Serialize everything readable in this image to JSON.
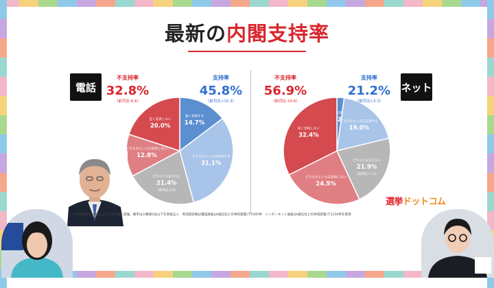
{
  "title": {
    "prefix": "最新の",
    "highlight": "内閣支持率"
  },
  "colors": {
    "support": "#5b8fd0",
    "not_support": "#d54a4e",
    "neutral": "#b7b7b7",
    "accent": "#d8262d"
  },
  "panels": [
    {
      "method": "電話",
      "not_support": {
        "label": "不支持率",
        "value": "32.8%",
        "change": "（前月比-6.6）"
      },
      "support": {
        "label": "支持率",
        "value": "45.8%",
        "change": "（前月比+10.3）"
      }
    },
    {
      "method": "ネット",
      "not_support": {
        "label": "不支持率",
        "value": "56.9%",
        "change": "（前月比-10.6）"
      },
      "support": {
        "label": "支持率",
        "value": "21.2%",
        "change": "（前月比+3.3）"
      }
    }
  ],
  "chart_data": [
    {
      "type": "pie",
      "slices": [
        {
          "label": "強く支持する",
          "value": 14.7,
          "group": "support"
        },
        {
          "label": "どちらかといえば支持する",
          "value": 31.1,
          "group": "support"
        },
        {
          "label": "どちらとも言えない",
          "value": 21.4,
          "change": "（前月比-3.6）",
          "group": "neutral"
        },
        {
          "label": "どちらかといえば支持しない",
          "value": 12.8,
          "group": "not_support"
        },
        {
          "label": "全く支持しない",
          "value": 20.0,
          "group": "not_support"
        }
      ]
    },
    {
      "type": "pie",
      "slices": [
        {
          "label": "強く支持する",
          "value": 2.2,
          "group": "support"
        },
        {
          "label": "どちらかといえば支持する",
          "value": 19.0,
          "group": "support"
        },
        {
          "label": "どちらとも言えない",
          "value": 21.9,
          "change": "（前月比+7.6）",
          "group": "neutral"
        },
        {
          "label": "どちらかといえば支持しない",
          "value": 24.5,
          "group": "not_support"
        },
        {
          "label": "全く支持しない",
          "value": 32.4,
          "group": "not_support"
        }
      ]
    }
  ],
  "footnote": "※日本国内の18歳以上の方を対象に実施。数字は小数第2位以下を四捨五入　有効回答数は電話調査(JX通信社との共同実施)で1000件　インターネット調査(JX通信社との共同実施)で1234件を取得",
  "brand": {
    "part1": "選挙",
    "part2": "ドットコム"
  }
}
